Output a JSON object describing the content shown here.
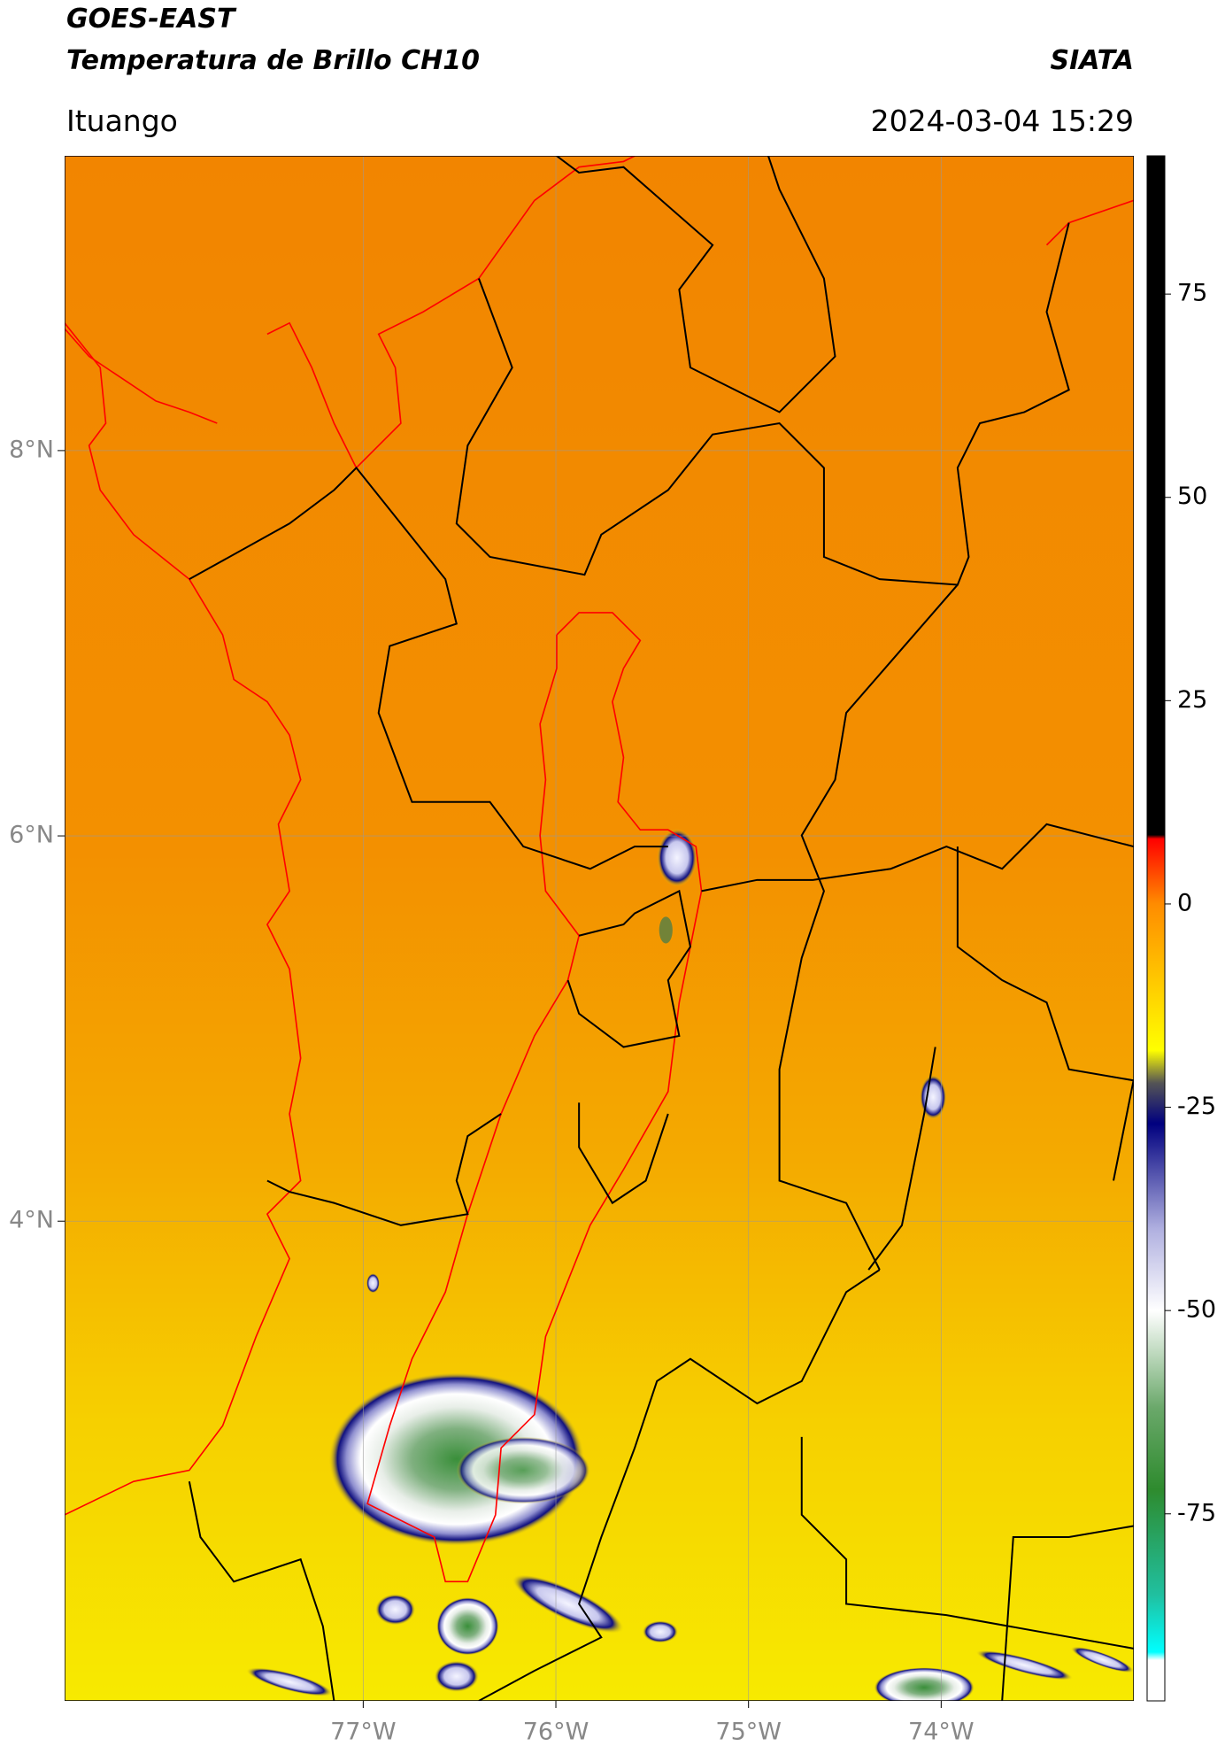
{
  "header": {
    "title": "GOES-EAST",
    "subtitle": "Temperatura de Brillo CH10",
    "source": "SIATA",
    "region": "Ituango",
    "datetime": "2024-03-04 15:29"
  },
  "map": {
    "lon_lim": [
      -78.55,
      -73.0
    ],
    "lat_lim": [
      1.51,
      9.53
    ],
    "lon_ticks": [
      {
        "value": -77,
        "label": "77°W"
      },
      {
        "value": -76,
        "label": "76°W"
      },
      {
        "value": -75,
        "label": "75°W"
      },
      {
        "value": -74,
        "label": "74°W"
      }
    ],
    "lat_ticks": [
      {
        "value": 8,
        "label": "8°N"
      },
      {
        "value": 6,
        "label": "6°N"
      },
      {
        "value": 4,
        "label": "4°N"
      }
    ],
    "grid": true
  },
  "colorbar": {
    "lim": [
      -98,
      92
    ],
    "ticks": [
      75,
      50,
      25,
      0,
      -25,
      -50,
      -75
    ],
    "stops": [
      {
        "value": 92,
        "color": "#000000"
      },
      {
        "value": 8.5,
        "color": "#000000"
      },
      {
        "value": 8,
        "color": "#ff0000"
      },
      {
        "value": 0,
        "color": "#ff8c00"
      },
      {
        "value": -18,
        "color": "#ffff00"
      },
      {
        "value": -22,
        "color": "#555555"
      },
      {
        "value": -27,
        "color": "#00007f"
      },
      {
        "value": -40,
        "color": "#b0b0e0"
      },
      {
        "value": -50,
        "color": "#ffffff"
      },
      {
        "value": -62,
        "color": "#6aa86a"
      },
      {
        "value": -72,
        "color": "#2e8b2e"
      },
      {
        "value": -85,
        "color": "#20c0a0"
      },
      {
        "value": -92,
        "color": "#00ffff"
      },
      {
        "value": -93,
        "color": "#ffffff"
      },
      {
        "value": -98,
        "color": "#ffffff"
      }
    ]
  }
}
